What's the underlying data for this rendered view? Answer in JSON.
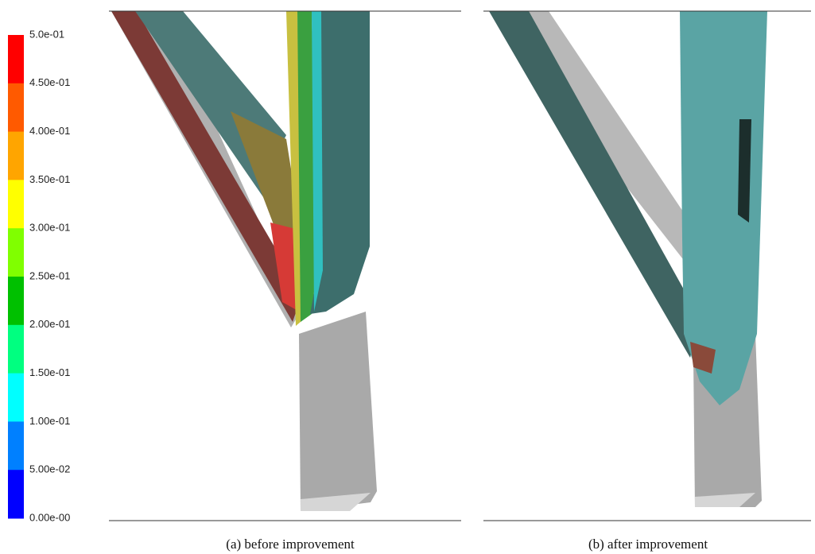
{
  "colorbar": {
    "labels": [
      "5.0e-01",
      "4.50e-01",
      "4.00e-01",
      "3.50e-01",
      "3.00e-01",
      "2.50e-01",
      "2.00e-01",
      "1.50e-01",
      "1.00e-01",
      "5.00e-02",
      "0.00e-00"
    ],
    "colors": [
      "#ff0000",
      "#ff5a00",
      "#ffa500",
      "#ffff00",
      "#80ff00",
      "#00c000",
      "#00ff80",
      "#00ffff",
      "#0080ff",
      "#0000ff"
    ]
  },
  "panels": [
    {
      "caption": "(a) before improvement"
    },
    {
      "caption": "(b) after improvement"
    }
  ]
}
